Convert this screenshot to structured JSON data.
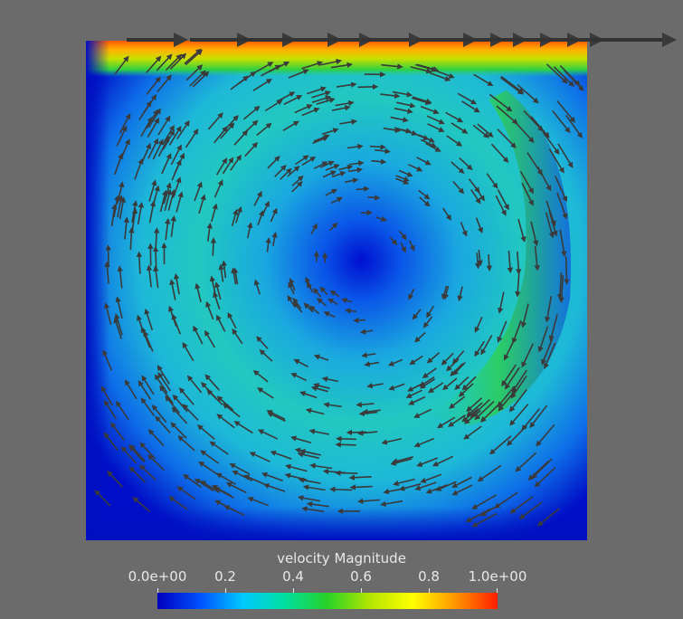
{
  "viewport": {
    "background": "#6b6b6b",
    "field": "velocity",
    "component": "Magnitude"
  },
  "colorbar": {
    "title": "velocity Magnitude",
    "range": [
      0.0,
      1.0
    ],
    "ticks": [
      "0.0e+00",
      "0.2",
      "0.4",
      "0.6",
      "0.8",
      "1.0e+00"
    ],
    "tick_values": [
      0.0,
      0.2,
      0.4,
      0.6,
      0.8,
      1.0
    ],
    "colormap": [
      "#0000bf",
      "#0050ff",
      "#00c8ff",
      "#00e0a0",
      "#28d228",
      "#b4e600",
      "#ffff00",
      "#ff9600",
      "#ff1e00"
    ]
  }
}
